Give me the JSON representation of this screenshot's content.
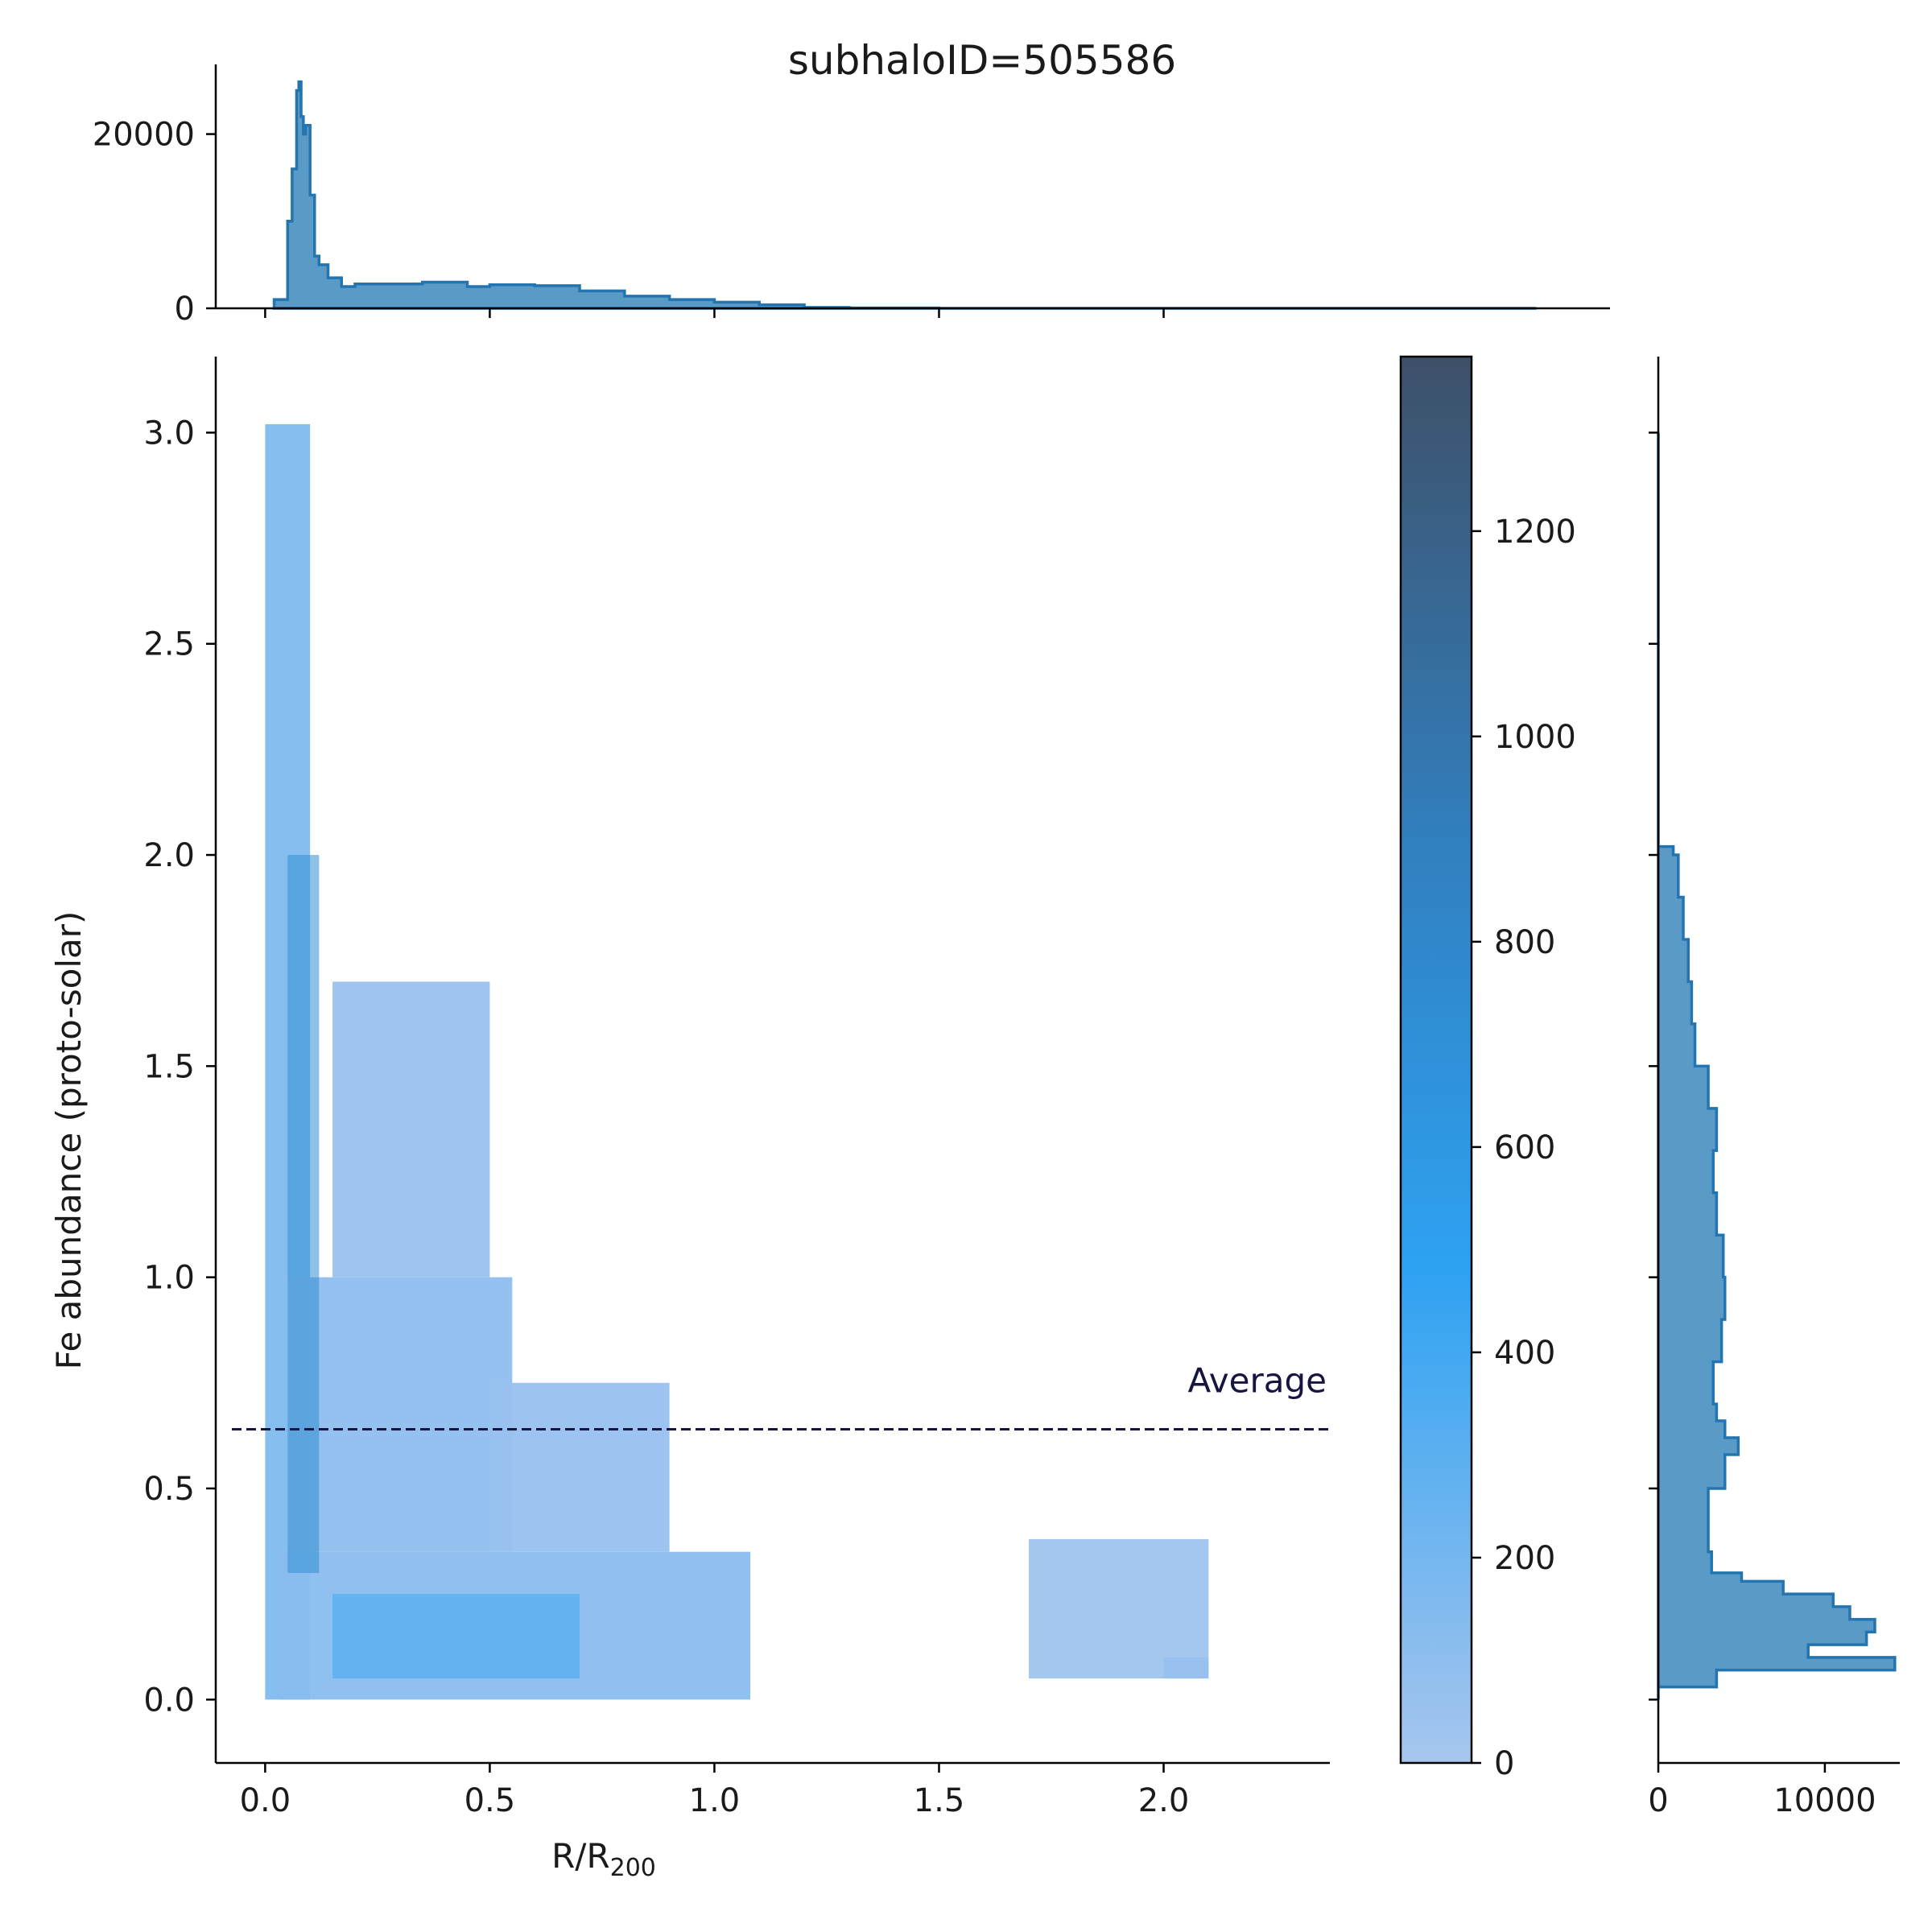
{
  "title": "subhaloID=505586",
  "colors": {
    "hist_fill": "#5a9ac7",
    "hist_edge": "#2474b0",
    "average_line": "#151540",
    "cmap_low": "#a7c6ee",
    "cmap_mid": "#2ea2f2",
    "cmap_high": "#3e5068"
  },
  "chart_data": [
    {
      "id": "joint",
      "type": "heatmap",
      "xlabel": "R/R",
      "xlabel_sub": "200",
      "ylabel": "Fe abundance (proto-solar)",
      "xlim": [
        -0.11,
        2.37
      ],
      "ylim": [
        -0.15,
        3.18
      ],
      "xticks": [
        "0.0",
        "0.5",
        "1.0",
        "1.5",
        "2.0"
      ],
      "xtick_values": [
        0,
        0.5,
        1.0,
        1.5,
        2.0
      ],
      "yticks": [
        "0.0",
        "0.5",
        "1.0",
        "1.5",
        "2.0",
        "2.5",
        "3.0"
      ],
      "ytick_values": [
        0,
        0.5,
        1.0,
        1.5,
        2.0,
        2.5,
        3.0
      ],
      "grid": false,
      "average": {
        "label": "Average",
        "value": 0.64,
        "x_range": [
          -0.11,
          2.37
        ]
      },
      "density_regions": [
        {
          "x": [
            0.0,
            0.1
          ],
          "y": [
            0.0,
            3.02
          ],
          "count": 150
        },
        {
          "x": [
            0.03,
            1.08
          ],
          "y": [
            0.0,
            0.35
          ],
          "count": 120
        },
        {
          "x": [
            0.05,
            0.55
          ],
          "y": [
            0.35,
            1.0
          ],
          "count": 100
        },
        {
          "x": [
            0.15,
            0.5
          ],
          "y": [
            1.0,
            1.7
          ],
          "count": 50
        },
        {
          "x": [
            0.5,
            0.9
          ],
          "y": [
            0.35,
            0.75
          ],
          "count": 60
        },
        {
          "x": [
            1.7,
            2.1
          ],
          "y": [
            0.05,
            0.38
          ],
          "count": 30
        },
        {
          "x": [
            2.0,
            2.1
          ],
          "y": [
            0.05,
            0.1
          ],
          "count": 60
        },
        {
          "x": [
            0.05,
            0.12
          ],
          "y": [
            0.3,
            2.0
          ],
          "count": 700
        },
        {
          "x": [
            0.15,
            0.7
          ],
          "y": [
            0.05,
            0.25
          ],
          "count": 400
        }
      ]
    },
    {
      "id": "colorbar",
      "type": "colorbar",
      "ylim": [
        0,
        1370
      ],
      "ticks": [
        "0",
        "200",
        "400",
        "600",
        "800",
        "1000",
        "1200"
      ],
      "tick_values": [
        0,
        200,
        400,
        600,
        800,
        1000,
        1200
      ]
    },
    {
      "id": "marginal-x",
      "type": "area",
      "ylim": [
        0,
        28000
      ],
      "yticks": [
        "0",
        "20000"
      ],
      "ytick_values": [
        0,
        20000
      ],
      "x": [
        0.02,
        0.05,
        0.06,
        0.07,
        0.075,
        0.08,
        0.085,
        0.09,
        0.1,
        0.11,
        0.12,
        0.14,
        0.17,
        0.2,
        0.3,
        0.35,
        0.45,
        0.5,
        0.6,
        0.7,
        0.8,
        0.9,
        1.0,
        1.1,
        1.2,
        1.3,
        1.5,
        2.0,
        2.5,
        2.83
      ],
      "values": [
        1000,
        10000,
        16000,
        25000,
        26000,
        22000,
        20000,
        21000,
        13000,
        6000,
        5000,
        3500,
        2500,
        2800,
        2800,
        3000,
        2500,
        2700,
        2600,
        2000,
        1400,
        1000,
        700,
        400,
        100,
        50,
        0,
        0,
        0,
        0
      ]
    },
    {
      "id": "marginal-y",
      "type": "area",
      "xlim": [
        0,
        14500
      ],
      "xticks": [
        "0",
        "10000"
      ],
      "xtick_values": [
        0,
        10000
      ],
      "y": [
        0.0,
        0.03,
        0.07,
        0.1,
        0.13,
        0.16,
        0.19,
        0.22,
        0.25,
        0.28,
        0.3,
        0.35,
        0.4,
        0.5,
        0.58,
        0.62,
        0.66,
        0.7,
        0.8,
        0.9,
        1.0,
        1.1,
        1.2,
        1.3,
        1.4,
        1.5,
        1.6,
        1.7,
        1.8,
        1.9,
        2.0,
        2.02,
        2.1,
        2.5,
        3.0
      ],
      "values": [
        0,
        3500,
        14200,
        9000,
        12500,
        13000,
        11500,
        10500,
        7500,
        5000,
        3200,
        3000,
        3000,
        4000,
        4800,
        4000,
        3500,
        3300,
        3800,
        4000,
        3900,
        3500,
        3300,
        3500,
        3000,
        2200,
        2000,
        1800,
        1500,
        1200,
        900,
        0,
        0,
        0,
        0
      ]
    }
  ]
}
